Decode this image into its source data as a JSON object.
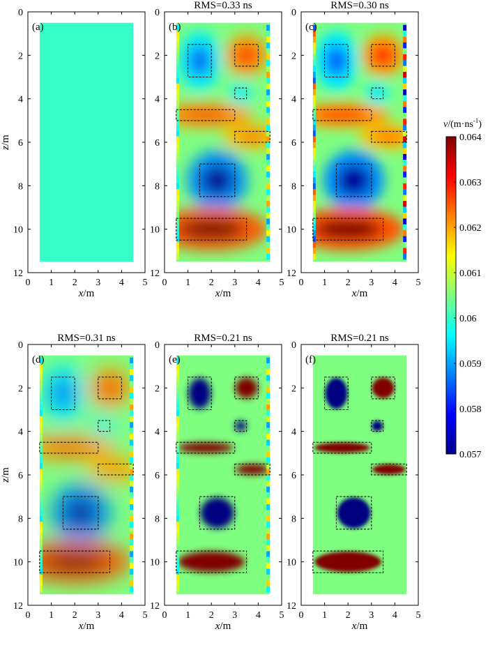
{
  "chart_data": {
    "type": "heatmap",
    "layout": "2 rows x 3 columns of panels + shared colorbar",
    "colormap": "jet",
    "x_axis": {
      "label": "x",
      "unit": "/m",
      "range": [
        0,
        5
      ],
      "ticks": [
        "0",
        "1",
        "2",
        "3",
        "4",
        "5"
      ]
    },
    "y_axis": {
      "label": "z",
      "unit": "/m",
      "range": [
        0,
        12
      ],
      "inverted": true,
      "ticks": [
        "0",
        "2",
        "4",
        "6",
        "8",
        "10",
        "12"
      ]
    },
    "model_extent": {
      "x": [
        0.5,
        4.5
      ],
      "z": [
        0.5,
        11.5
      ]
    },
    "colorbar": {
      "label_var": "v",
      "label_unit": "/(m·ns",
      "label_exp": "-1",
      "label_close": ")",
      "range": [
        0.057,
        0.064
      ],
      "ticks": [
        "0.064",
        "0.063",
        "0.062",
        "0.061",
        "0.06",
        "0.059",
        "0.058",
        "0.057"
      ]
    },
    "boxes": [
      {
        "name": "box-left-top",
        "x": [
          1.0,
          2.0
        ],
        "z": [
          1.5,
          3.0
        ]
      },
      {
        "name": "box-right-top",
        "x": [
          3.0,
          4.0
        ],
        "z": [
          1.5,
          2.5
        ]
      },
      {
        "name": "box-small",
        "x": [
          3.0,
          3.5
        ],
        "z": [
          3.5,
          4.0
        ]
      },
      {
        "name": "box-slab-left",
        "x": [
          0.5,
          3.0
        ],
        "z": [
          4.5,
          5.0
        ]
      },
      {
        "name": "box-slab-right",
        "x": [
          3.0,
          4.5
        ],
        "z": [
          5.5,
          6.0
        ]
      },
      {
        "name": "box-center",
        "x": [
          1.5,
          3.0
        ],
        "z": [
          7.0,
          8.5
        ]
      },
      {
        "name": "box-bottom",
        "x": [
          0.5,
          3.5
        ],
        "z": [
          9.5,
          10.5
        ]
      }
    ],
    "anomalies": [
      {
        "kind": "low",
        "x": 1.5,
        "z": 2.2,
        "v": 0.0585
      },
      {
        "kind": "high",
        "x": 3.5,
        "z": 2.0,
        "v": 0.063
      },
      {
        "kind": "low",
        "x": 3.25,
        "z": 3.75,
        "v": 0.0592
      },
      {
        "kind": "high",
        "x": 1.7,
        "z": 4.75,
        "v": 0.063
      },
      {
        "kind": "high",
        "x": 3.7,
        "z": 5.75,
        "v": 0.0625
      },
      {
        "kind": "low",
        "x": 2.25,
        "z": 7.75,
        "v": 0.0572
      },
      {
        "kind": "high",
        "x": 2.0,
        "z": 10.0,
        "v": 0.064
      }
    ],
    "background_v": 0.0605,
    "panels": [
      {
        "id": "a",
        "letter": "(a)",
        "title": "",
        "kind": "uniform"
      },
      {
        "id": "b",
        "letter": "(b)",
        "title": "RMS=0.33 ns",
        "kind": "smooth"
      },
      {
        "id": "c",
        "letter": "(c)",
        "title": "RMS=0.30 ns",
        "kind": "smooth-strong"
      },
      {
        "id": "d",
        "letter": "(d)",
        "title": "RMS=0.31 ns",
        "kind": "very-smooth"
      },
      {
        "id": "e",
        "letter": "(e)",
        "title": "RMS=0.21 ns",
        "kind": "sharp"
      },
      {
        "id": "f",
        "letter": "(f)",
        "title": "RMS=0.21 ns",
        "kind": "sharpest"
      }
    ]
  }
}
